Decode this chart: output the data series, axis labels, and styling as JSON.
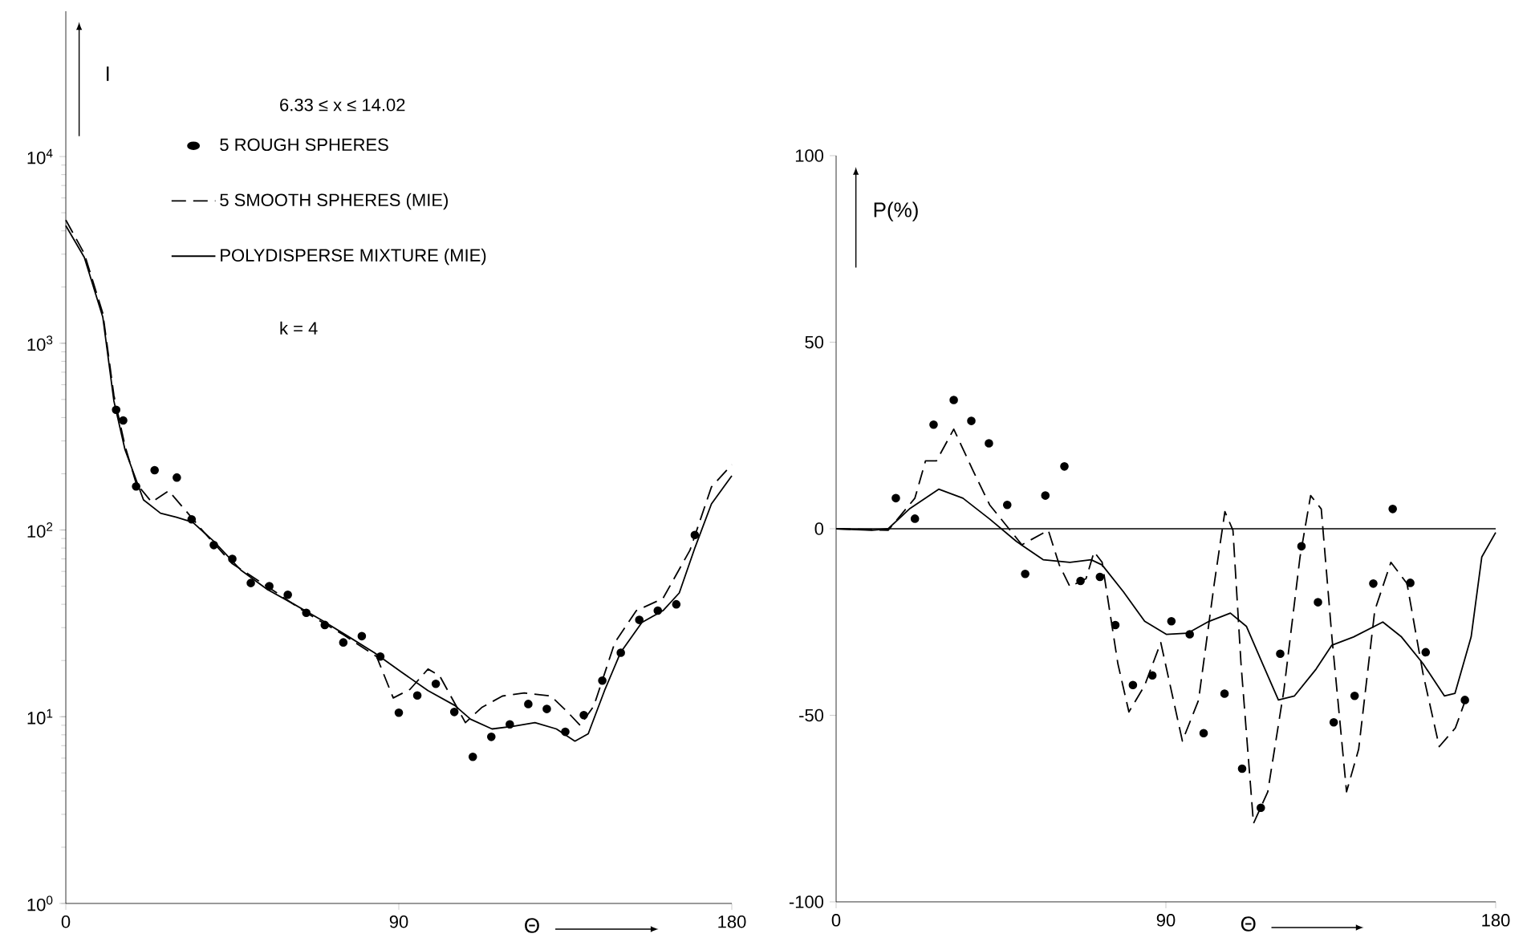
{
  "chart_data": [
    {
      "type": "line",
      "xlabel": "Θ",
      "ylabel": "I",
      "log": "y",
      "legend": "top",
      "xlim": [
        0,
        180
      ],
      "xticks": [
        0,
        90,
        180
      ],
      "ylim": [
        1,
        60000
      ],
      "yticks": [
        {
          "value": 1,
          "label": "10$^{0}$"
        },
        {
          "value": 10,
          "label": "10$^{1}$"
        },
        {
          "value": 100,
          "label": "10$^{2}$"
        },
        {
          "value": 1000,
          "label": "10$^{3}$"
        },
        {
          "value": 10000,
          "label": "10$^{4}$"
        }
      ],
      "annotations": [
        "6.33 ≤ x ≤ 14.02",
        "k = 4"
      ],
      "series": [
        {
          "name": "5 ROUGH SPHERES",
          "type": "scatter",
          "marker": "circle",
          "color": "#000000",
          "x": [
            13.6,
            15.5,
            19,
            24,
            30,
            34,
            40,
            45,
            50,
            55,
            60,
            65,
            70,
            75,
            80,
            85,
            90,
            95,
            100,
            105,
            110,
            115,
            120,
            125,
            130,
            135,
            140,
            145,
            150,
            155,
            160,
            165,
            170
          ],
          "values": [
            440,
            386,
            171,
            209,
            191,
            114,
            83,
            70,
            52,
            50,
            45,
            36,
            31,
            25,
            27,
            21,
            10.5,
            13,
            15,
            10.6,
            6.1,
            7.8,
            9.1,
            11.7,
            11,
            8.3,
            10.2,
            15.6,
            22,
            33,
            37,
            40,
            94
          ]
        },
        {
          "name": "5 SMOOTH SPHERES (MIE)",
          "line_style": "dashed",
          "color": "#000000",
          "x": [
            0,
            5,
            10,
            13,
            16,
            19,
            23.2,
            27.8,
            32.1,
            37.2,
            45,
            55,
            65,
            75,
            84,
            88.5,
            93,
            97.9,
            101,
            108,
            112.4,
            118,
            123.9,
            131.1,
            135.4,
            139,
            142.7,
            148.4,
            154.2,
            161.4,
            168.7,
            174.5,
            180
          ],
          "values": [
            4570,
            3020,
            1445,
            525,
            282,
            178,
            141,
            162,
            129,
            98,
            66,
            49,
            36,
            27.5,
            21,
            12.6,
            14,
            18,
            16.6,
            9.3,
            11.2,
            12.9,
            13.4,
            12.9,
            10.7,
            9.0,
            11.4,
            25,
            37,
            43,
            78,
            170,
            224
          ]
        },
        {
          "name": "POLYDISPERSE MIXTURE (MIE)",
          "line_style": "solid",
          "color": "#000000",
          "x": [
            0,
            5,
            10,
            13,
            16,
            21,
            25.6,
            29.9,
            34.3,
            40,
            47.3,
            54.5,
            61.7,
            69,
            76.2,
            83.4,
            90.6,
            97.9,
            105.1,
            109.4,
            115.2,
            121,
            126.8,
            132.6,
            137.6,
            141.2,
            145.6,
            149.9,
            155.7,
            161.4,
            165.8,
            170.1,
            174.5,
            180
          ],
          "values": [
            4266,
            2884,
            1380,
            490,
            269,
            145,
            123,
            117,
            110,
            87,
            61,
            48,
            40,
            33,
            27,
            22,
            17.4,
            13.8,
            11.5,
            9.7,
            8.6,
            8.9,
            9.3,
            8.6,
            7.4,
            8.1,
            13.8,
            22,
            32,
            37,
            46,
            81,
            138,
            195
          ]
        }
      ]
    },
    {
      "type": "line",
      "xlabel": "Θ",
      "ylabel": "P(%)",
      "xlim": [
        0,
        180
      ],
      "xticks": [
        0,
        90,
        180
      ],
      "ylim": [
        -100,
        100
      ],
      "yticks": [
        -100,
        -50,
        0,
        50,
        100
      ],
      "ref_lines": [
        {
          "axis": "y",
          "value": 0
        }
      ],
      "series": [
        {
          "type": "scatter",
          "marker": "circle",
          "color": "#000000",
          "x": [
            16.3,
            21.5,
            26.6,
            32.1,
            36.9,
            41.7,
            46.7,
            51.6,
            57.1,
            62.3,
            66.7,
            72,
            76.2,
            81,
            86.3,
            91.5,
            96.5,
            100.3,
            106,
            110.8,
            115.9,
            121.2,
            127,
            131.5,
            135.8,
            141.5,
            146.6,
            151.9,
            156.7,
            160.9,
            171.6
          ],
          "values": [
            8.2,
            2.7,
            27.9,
            34.5,
            28.9,
            22.9,
            6.4,
            -12.1,
            8.9,
            16.7,
            -14,
            -12.9,
            -25.8,
            -41.9,
            -39.3,
            -24.8,
            -28.3,
            -54.8,
            -44.2,
            -64.3,
            -74.8,
            -33.5,
            -4.7,
            -19.7,
            -51.9,
            -44.8,
            -14.7,
            5.3,
            -14.5,
            -33.1,
            -45.9
          ]
        },
        {
          "line_style": "dashed",
          "color": "#000000",
          "x": [
            0,
            14.2,
            21.5,
            24.4,
            27.4,
            32.1,
            37.5,
            41.9,
            50.7,
            57.9,
            60.9,
            63.8,
            68.2,
            70.4,
            72.6,
            76.9,
            79.9,
            84.2,
            88.6,
            94.5,
            98.9,
            103.2,
            106.1,
            108.3,
            110.5,
            113.9,
            117.8,
            122.2,
            126.6,
            129.5,
            132.4,
            135.3,
            139.3,
            142.6,
            147,
            151.4,
            155.8,
            160.2,
            164.6,
            169,
            171.9
          ],
          "values": [
            0,
            -0.4,
            8.2,
            18.2,
            18.2,
            26.7,
            15.3,
            6.4,
            -4.3,
            -0.4,
            -9.7,
            -15.5,
            -13.4,
            -6.2,
            -9,
            -36.2,
            -49.1,
            -42,
            -30.5,
            -56.9,
            -46,
            -14.7,
            4.6,
            -0.4,
            -36.2,
            -79,
            -70.5,
            -43.3,
            -7.6,
            8.9,
            5.3,
            -29,
            -70.5,
            -59.1,
            -21.9,
            -9,
            -14.7,
            -39,
            -58.4,
            -53.4,
            -45.5
          ]
        },
        {
          "line_style": "solid",
          "color": "#000000",
          "x": [
            0,
            9.8,
            14.2,
            20,
            28,
            34.6,
            41.9,
            49.2,
            56.5,
            63.8,
            69.6,
            72.6,
            78.4,
            84.2,
            90.1,
            95.9,
            101.8,
            107.6,
            112,
            116.4,
            120.7,
            125.1,
            131,
            135.3,
            141.2,
            149.2,
            154.3,
            160.2,
            166,
            168.9,
            173.3,
            176.2,
            180
          ],
          "values": [
            0,
            -0.4,
            0,
            5.3,
            10.6,
            8.2,
            2.6,
            -3.4,
            -8.3,
            -9,
            -8.3,
            -9.7,
            -16.9,
            -24.8,
            -28.3,
            -28,
            -24.8,
            -22.6,
            -26.2,
            -36.2,
            -45.9,
            -44.8,
            -37.6,
            -31.2,
            -29,
            -25,
            -29,
            -36.2,
            -44.8,
            -44.1,
            -29,
            -7.6,
            -1
          ]
        }
      ]
    }
  ]
}
